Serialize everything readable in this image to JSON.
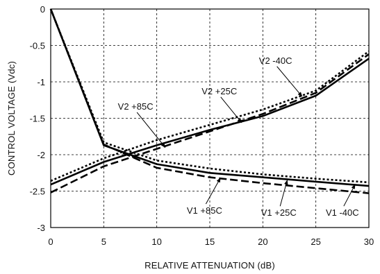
{
  "chart_data": {
    "type": "line",
    "title": "",
    "xlabel": "RELATIVE ATTENUATION (dB)",
    "ylabel": "CONTROL VOLTAGE (Vdc)",
    "xlim": [
      0,
      30
    ],
    "ylim": [
      -3,
      0
    ],
    "xticks": [
      0,
      5,
      10,
      15,
      20,
      25,
      30
    ],
    "yticks": [
      0,
      -0.5,
      -1,
      -1.5,
      -2,
      -2.5,
      -3
    ],
    "xtick_labels": [
      "0",
      "5",
      "10",
      "15",
      "20",
      "25",
      "30"
    ],
    "ytick_labels": [
      "0",
      "-0.5",
      "-1",
      "-1.5",
      "-2",
      "-2.5",
      "-3"
    ],
    "grid": true,
    "series": [
      {
        "name": "V1 +85C",
        "style": "dashed",
        "x": [
          0,
          5,
          10,
          15,
          20,
          25,
          30
        ],
        "y": [
          0,
          -1.86,
          -2.18,
          -2.31,
          -2.39,
          -2.46,
          -2.53
        ]
      },
      {
        "name": "V1 +25C",
        "style": "solid",
        "x": [
          0,
          5,
          10,
          15,
          20,
          25,
          30
        ],
        "y": [
          0,
          -1.87,
          -2.13,
          -2.25,
          -2.31,
          -2.37,
          -2.43
        ]
      },
      {
        "name": "V1 -40C",
        "style": "dotted",
        "x": [
          0,
          5,
          10,
          15,
          20,
          25,
          30
        ],
        "y": [
          0,
          -1.83,
          -2.08,
          -2.19,
          -2.27,
          -2.33,
          -2.38
        ]
      },
      {
        "name": "V2 +85C",
        "style": "dashed",
        "x": [
          0,
          5,
          10,
          15,
          20,
          25,
          30
        ],
        "y": [
          -2.52,
          -2.16,
          -1.92,
          -1.68,
          -1.44,
          -1.15,
          -0.62
        ]
      },
      {
        "name": "V2 +25C",
        "style": "solid",
        "x": [
          0,
          5,
          10,
          15,
          20,
          25,
          30
        ],
        "y": [
          -2.41,
          -2.1,
          -1.87,
          -1.66,
          -1.47,
          -1.19,
          -0.68
        ]
      },
      {
        "name": "V2 -40C",
        "style": "dotted",
        "x": [
          0,
          5,
          10,
          15,
          20,
          25,
          30
        ],
        "y": [
          -2.36,
          -2.05,
          -1.8,
          -1.59,
          -1.38,
          -1.12,
          -0.58
        ]
      }
    ],
    "annotations": [
      {
        "text": "V2 -40C",
        "x": 21.2,
        "y": -0.75,
        "points_to": [
          23.7,
          -1.2
        ]
      },
      {
        "text": "V2 +25C",
        "x": 15.9,
        "y": -1.17,
        "points_to": [
          18.0,
          -1.56
        ]
      },
      {
        "text": "V2 +85C",
        "x": 8.0,
        "y": -1.38,
        "points_to": [
          10.8,
          -1.9
        ]
      },
      {
        "text": "V1 +85C",
        "x": 14.5,
        "y": -2.81,
        "points_to": [
          16.0,
          -2.32
        ]
      },
      {
        "text": "V1 +25C",
        "x": 21.5,
        "y": -2.84,
        "points_to": [
          22.3,
          -2.35
        ]
      },
      {
        "text": "V1 -40C",
        "x": 27.5,
        "y": -2.84,
        "points_to": [
          28.7,
          -2.41
        ]
      }
    ]
  }
}
